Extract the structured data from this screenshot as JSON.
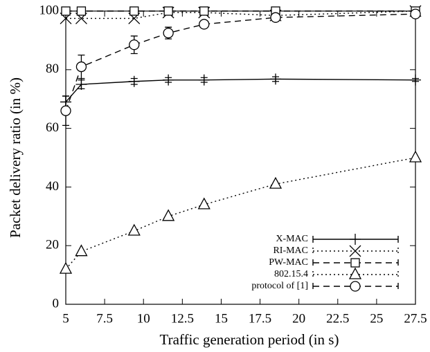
{
  "chart_data": {
    "type": "line",
    "xlabel": "Traffic generation period (in s)",
    "ylabel": "Packet delivery ratio (in %)",
    "x": [
      5,
      6,
      9.4,
      11.6,
      13.9,
      18.5,
      27.5
    ],
    "xlim": [
      5,
      27.5
    ],
    "xticks": [
      5,
      7.5,
      10,
      12.5,
      15,
      17.5,
      20,
      22.5,
      25,
      27.5
    ],
    "ylim": [
      0,
      100
    ],
    "yticks": [
      0,
      20,
      40,
      60,
      80,
      100
    ],
    "legend": "lower right",
    "series": [
      {
        "name": "X-MAC",
        "color": "#000000",
        "dash": "solid",
        "marker": "plus",
        "values": [
          69,
          75,
          76,
          76.5,
          76.5,
          76.8,
          76.5
        ],
        "errors": [
          2,
          1.5,
          1,
          0.8,
          0.8,
          0.8,
          0.5
        ]
      },
      {
        "name": "RI-MAC",
        "color": "#000000",
        "dash": "dotted",
        "marker": "cross",
        "values": [
          97.5,
          97.5,
          97.5,
          99.5,
          99.5,
          98.5,
          100
        ]
      },
      {
        "name": "PW-MAC",
        "color": "#000000",
        "dash": "dashed",
        "marker": "square",
        "values": [
          100,
          100,
          100,
          100,
          100,
          100,
          100
        ]
      },
      {
        "name": "802.15.4",
        "color": "#000000",
        "dash": "dotted",
        "marker": "triangle",
        "values": [
          12,
          18,
          25,
          30,
          34,
          41,
          50
        ]
      },
      {
        "name": "protocol of [1]",
        "color": "#000000",
        "dash": "dashed",
        "marker": "circle",
        "values": [
          66,
          81,
          88.5,
          92.5,
          95.5,
          97.8,
          99
        ],
        "errors": [
          5,
          4,
          3,
          2,
          1,
          0.8,
          0.5
        ]
      }
    ]
  }
}
